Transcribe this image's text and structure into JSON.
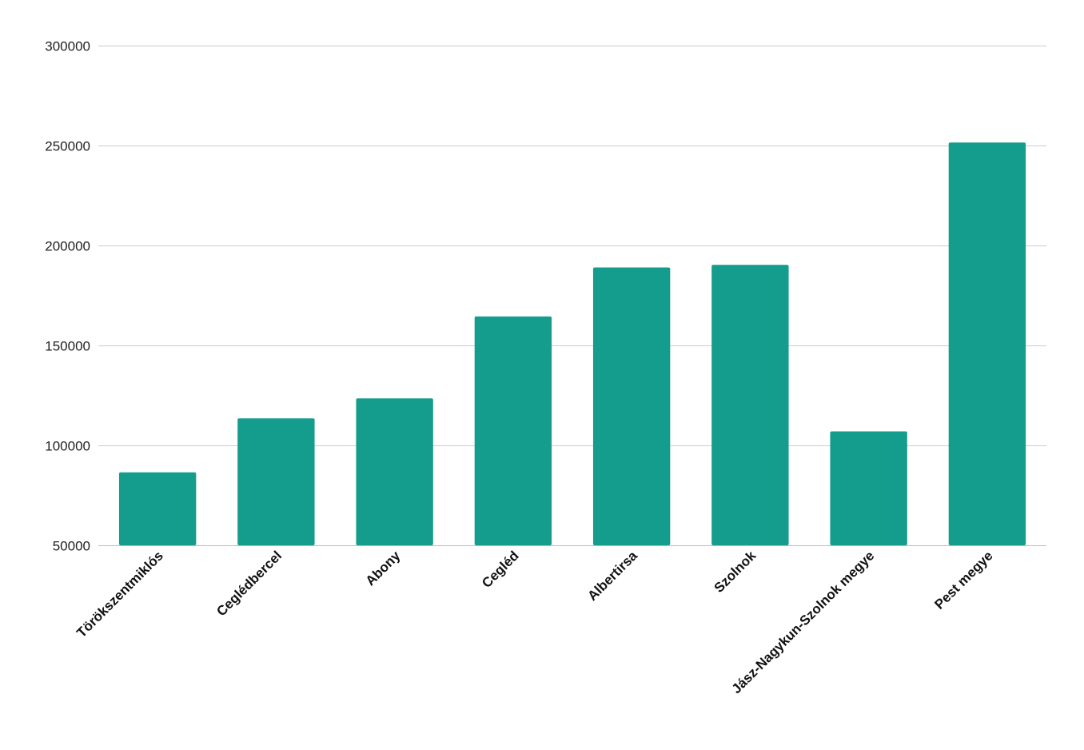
{
  "chart_data": {
    "type": "bar",
    "title": "",
    "xlabel": "",
    "ylabel": "",
    "categories": [
      "Törökszentmiklós",
      "Ceglédbercel",
      "Abony",
      "Cegléd",
      "Albertirsa",
      "Szolnok",
      "Jász-Nagykun-Szolnok megye",
      "Pest megye"
    ],
    "values": [
      86500,
      113500,
      123500,
      164500,
      189000,
      190300,
      107000,
      251500
    ],
    "ylim": [
      50000,
      300000
    ],
    "yticks": [
      "50000",
      "100000",
      "150000",
      "200000",
      "250000",
      "300000"
    ],
    "grid": true,
    "legend": "none",
    "bar_color": "#149c8c"
  }
}
